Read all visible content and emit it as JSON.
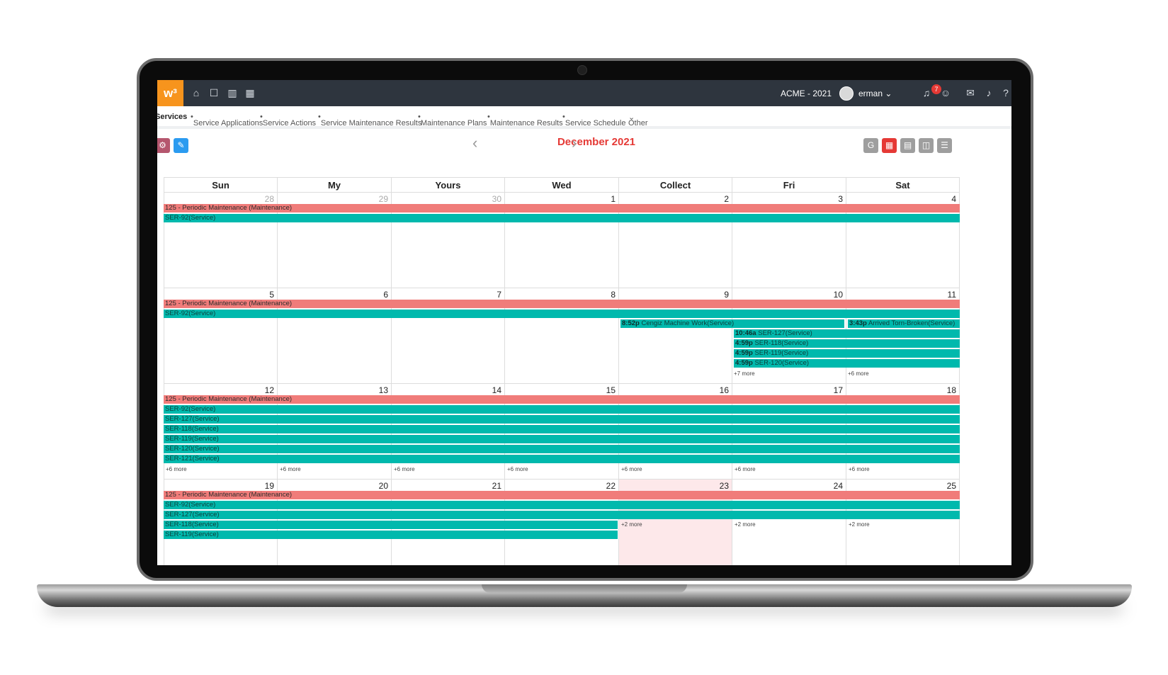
{
  "topbar": {
    "logo": "w³",
    "org": "ACME - 2021",
    "user": "erman",
    "notifications_count": "7",
    "icons": [
      "home-icon",
      "apps-icon",
      "chart-icon",
      "calendar-icon",
      "headset-icon",
      "smiley-icon",
      "chat-icon",
      "bell-icon",
      "help-icon",
      "gear-icon"
    ]
  },
  "subnav": {
    "items": [
      "Services",
      "Service Applications",
      "Service Actions",
      "Service Maintenance Results",
      "Maintenance Plans",
      "Maintenance Results",
      "Service Schedule",
      "Other"
    ]
  },
  "calendar": {
    "month_title": "December 2021",
    "weekdays": [
      "Sun",
      "My",
      "Yours",
      "Wed",
      "Collect",
      "Fri",
      "Sat"
    ],
    "weeks": [
      {
        "days": [
          "28",
          "29",
          "30",
          "1",
          "2",
          "3",
          "4"
        ]
      },
      {
        "days": [
          "5",
          "6",
          "7",
          "8",
          "9",
          "10",
          "11"
        ]
      },
      {
        "days": [
          "12",
          "13",
          "14",
          "15",
          "16",
          "17",
          "18"
        ]
      },
      {
        "days": [
          "19",
          "20",
          "21",
          "22",
          "23",
          "24",
          "25"
        ]
      }
    ],
    "events": {
      "maintenance": "125 - Periodic Maintenance (Maintenance)",
      "ser92": "SER-92(Service)",
      "ser127": "SER-127(Service)",
      "ser118": "SER-118(Service)",
      "ser119": "SER-119(Service)",
      "ser120": "SER-120(Service)",
      "ser121": "SER-121(Service)",
      "cengiz_time": "8:52p",
      "cengiz": "Cengiz Machine Work(Service)",
      "arrived_time": "3:43p",
      "arrived": "Arrived Torn-Broken(Service)",
      "t1046": "10:46a",
      "t459": "4:59p"
    },
    "more": {
      "m7": "+7 more",
      "m6": "+6 more",
      "m2": "+2 more"
    }
  },
  "colors": {
    "accent": "#e53935",
    "maintenance": "#f07c7a",
    "service": "#00b9ad",
    "logo": "#f7941d",
    "topbar": "#2e353e"
  }
}
